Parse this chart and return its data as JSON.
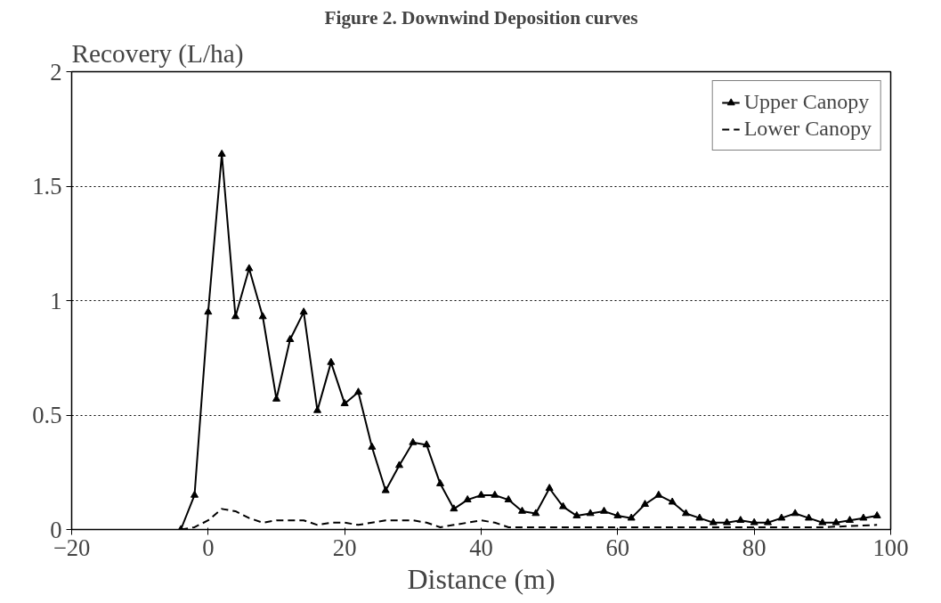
{
  "chart_data": {
    "type": "line",
    "title": "Figure 2. Downwind Deposition curves",
    "xlabel": "Distance (m)",
    "ylabel": "Recovery (L/ha)",
    "xlim": [
      -20,
      100
    ],
    "xticks": [
      -20,
      0,
      20,
      40,
      60,
      80,
      100
    ],
    "ylim": [
      0,
      2
    ],
    "yticks": [
      0,
      0.5,
      1,
      1.5,
      2
    ],
    "grid": "y",
    "legend": "top right",
    "series": [
      {
        "name": "Upper Canopy",
        "color": "#000000",
        "marker": "triangle",
        "line_style": "solid",
        "x": [
          -4,
          -2,
          0,
          2,
          4,
          6,
          8,
          10,
          12,
          14,
          16,
          18,
          20,
          22,
          24,
          26,
          28,
          30,
          32,
          34,
          36,
          38,
          40,
          42,
          44,
          46,
          48,
          50,
          52,
          54,
          56,
          58,
          60,
          62,
          64,
          66,
          68,
          70,
          72,
          74,
          76,
          78,
          80,
          82,
          84,
          86,
          88,
          90,
          92,
          94,
          96,
          98
        ],
        "values": [
          0,
          0.15,
          0.95,
          1.64,
          0.93,
          1.14,
          0.93,
          0.57,
          0.83,
          0.95,
          0.52,
          0.73,
          0.55,
          0.6,
          0.36,
          0.17,
          0.28,
          0.38,
          0.37,
          0.2,
          0.09,
          0.13,
          0.15,
          0.15,
          0.13,
          0.08,
          0.07,
          0.18,
          0.1,
          0.06,
          0.07,
          0.08,
          0.06,
          0.05,
          0.11,
          0.15,
          0.12,
          0.07,
          0.05,
          0.03,
          0.03,
          0.04,
          0.03,
          0.03,
          0.05,
          0.07,
          0.05,
          0.03,
          0.03,
          0.04,
          0.05,
          0.06
        ]
      },
      {
        "name": "Lower Canopy",
        "color": "#000000",
        "marker": "none",
        "line_style": "dashed",
        "x": [
          -4,
          -2,
          0,
          2,
          4,
          6,
          8,
          10,
          12,
          14,
          16,
          18,
          20,
          22,
          24,
          26,
          28,
          30,
          32,
          34,
          36,
          38,
          40,
          42,
          44,
          46,
          50,
          60,
          70,
          80,
          90,
          98
        ],
        "values": [
          0,
          0.01,
          0.04,
          0.09,
          0.08,
          0.05,
          0.03,
          0.04,
          0.04,
          0.04,
          0.02,
          0.03,
          0.03,
          0.02,
          0.03,
          0.04,
          0.04,
          0.04,
          0.03,
          0.01,
          0.02,
          0.03,
          0.04,
          0.03,
          0.01,
          0.01,
          0.01,
          0.01,
          0.01,
          0.01,
          0.01,
          0.02
        ]
      }
    ]
  }
}
